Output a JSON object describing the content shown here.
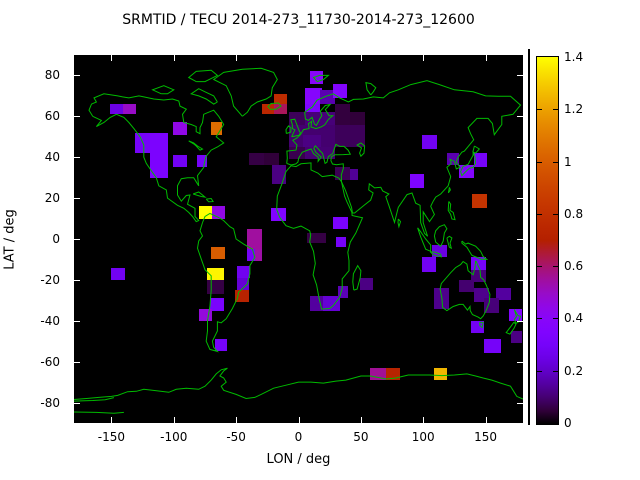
{
  "title": "SRMTID / TECU 2014-273_11730-2014-273_12600",
  "axes": {
    "xlabel": "LON / deg",
    "ylabel": "LAT / deg",
    "x_ticks": [
      "-150",
      "-100",
      "-50",
      "0",
      "50",
      "100",
      "150"
    ],
    "x_tick_values": [
      -150,
      -100,
      -50,
      0,
      50,
      100,
      150
    ],
    "y_ticks": [
      "80",
      "60",
      "40",
      "20",
      "0",
      "-20",
      "-40",
      "-60",
      "-80"
    ],
    "y_tick_values": [
      80,
      60,
      40,
      20,
      0,
      -20,
      -40,
      -60,
      -80
    ]
  },
  "colorbar": {
    "min": 0,
    "max": 1.4,
    "tick_labels": [
      "0",
      "0.2",
      "0.4",
      "0.6",
      "0.8",
      "1",
      "1.2",
      "1.4"
    ],
    "tick_values": [
      0,
      0.2,
      0.4,
      0.6,
      0.8,
      1,
      1.2,
      1.4
    ]
  },
  "colors": {
    "page_background": "#ffffff",
    "plot_background": "#000000",
    "coastline": "#00bb00",
    "text": "#000000",
    "palette_examples": {
      "v0": "#000000",
      "v0.4": "#8806f9",
      "v0.6": "#a7146f",
      "v0.8": "#c13000",
      "v1.0": "#d85d00",
      "v1.4": "#ffff00"
    }
  },
  "chart_data": {
    "type": "heatmap",
    "title": "SRMTID / TECU 2014-273_11730-2014-273_12600",
    "xlabel": "LON / deg",
    "ylabel": "LAT / deg",
    "xlim": [
      -180,
      180
    ],
    "ylim": [
      -90,
      90
    ],
    "grid": false,
    "legend_position": "right-colorbar",
    "value_range": [
      0,
      1.4
    ],
    "palette": "gnuplot rgbformulae: r=sqrt(x), g=x^3, b=sin(2*pi*x), x=value/1.4",
    "background": "black with green world coastlines",
    "cells": [
      {
        "lon": [
          -151,
          -141
        ],
        "lat": [
          61,
          66
        ],
        "v": 0.25
      },
      {
        "lon": [
          -141,
          -130
        ],
        "lat": [
          61,
          66
        ],
        "v": 0.5
      },
      {
        "lon": [
          -101,
          -89
        ],
        "lat": [
          51,
          57
        ],
        "v": 0.45
      },
      {
        "lon": [
          -70,
          -61
        ],
        "lat": [
          51,
          57
        ],
        "v": 1.05
      },
      {
        "lon": [
          -131,
          -119
        ],
        "lat": [
          42,
          52
        ],
        "v": 0.3
      },
      {
        "lon": [
          -119,
          -105
        ],
        "lat": [
          30,
          52
        ],
        "v": 0.33
      },
      {
        "lon": [
          -101,
          -89
        ],
        "lat": [
          35,
          41
        ],
        "v": 0.28
      },
      {
        "lon": [
          -81,
          -73
        ],
        "lat": [
          35,
          41
        ],
        "v": 0.3
      },
      {
        "lon": [
          -80,
          -69
        ],
        "lat": [
          10,
          16
        ],
        "v": 1.4
      },
      {
        "lon": [
          -69,
          -59
        ],
        "lat": [
          10,
          16
        ],
        "v": 0.45
      },
      {
        "lon": [
          -70,
          -59
        ],
        "lat": [
          -10,
          -4
        ],
        "v": 1.0
      },
      {
        "lon": [
          -73,
          -60
        ],
        "lat": [
          -20,
          -14
        ],
        "v": 1.38
      },
      {
        "lon": [
          -73,
          -60
        ],
        "lat": [
          -27,
          -20
        ],
        "v": 0.06
      },
      {
        "lon": [
          -71,
          -60
        ],
        "lat": [
          -35,
          -29
        ],
        "v": 0.32
      },
      {
        "lon": [
          -80,
          -69
        ],
        "lat": [
          -40,
          -34
        ],
        "v": 0.47
      },
      {
        "lon": [
          -67,
          -57
        ],
        "lat": [
          -55,
          -49
        ],
        "v": 0.3
      },
      {
        "lon": [
          -41,
          -29
        ],
        "lat": [
          -1,
          5
        ],
        "v": 0.55
      },
      {
        "lon": [
          -41,
          -29
        ],
        "lat": [
          -6,
          -1
        ],
        "v": 0.55
      },
      {
        "lon": [
          -41,
          -35
        ],
        "lat": [
          -11,
          -5
        ],
        "v": 0.3
      },
      {
        "lon": [
          -35,
          -29
        ],
        "lat": [
          -11,
          -5
        ],
        "v": 0.54
      },
      {
        "lon": [
          -49,
          -39
        ],
        "lat": [
          -19,
          -13
        ],
        "v": 0.27
      },
      {
        "lon": [
          -49,
          -40
        ],
        "lat": [
          -26,
          -19
        ],
        "v": 0.22
      },
      {
        "lon": [
          -51,
          -40
        ],
        "lat": [
          -31,
          -25
        ],
        "v": 0.72
      },
      {
        "lon": [
          -20,
          -9
        ],
        "lat": [
          65,
          71
        ],
        "v": 0.78
      },
      {
        "lon": [
          -29,
          -19
        ],
        "lat": [
          61,
          66
        ],
        "v": 0.75
      },
      {
        "lon": [
          -20,
          -9
        ],
        "lat": [
          61,
          66
        ],
        "v": 0.62
      },
      {
        "lon": [
          5,
          19
        ],
        "lat": [
          66,
          74
        ],
        "v": 0.38
      },
      {
        "lon": [
          5,
          17
        ],
        "lat": [
          61,
          66
        ],
        "v": 0.34
      },
      {
        "lon": [
          17,
          29
        ],
        "lat": [
          66,
          73
        ],
        "v": 0.17
      },
      {
        "lon": [
          28,
          39
        ],
        "lat": [
          69,
          76
        ],
        "v": 0.37
      },
      {
        "lon": [
          9,
          20
        ],
        "lat": [
          76,
          82
        ],
        "v": 0.4
      },
      {
        "lon": [
          -8,
          5
        ],
        "lat": [
          56,
          62
        ],
        "v": 0.08
      },
      {
        "lon": [
          5,
          29
        ],
        "lat": [
          56,
          62
        ],
        "v": 0.11
      },
      {
        "lon": [
          29,
          41
        ],
        "lat": [
          56,
          66
        ],
        "v": 0.055
      },
      {
        "lon": [
          41,
          53
        ],
        "lat": [
          56,
          62
        ],
        "v": 0.05
      },
      {
        "lon": [
          -8,
          29
        ],
        "lat": [
          45,
          56
        ],
        "v": 0.1
      },
      {
        "lon": [
          4,
          18
        ],
        "lat": [
          42,
          51
        ],
        "v": 0.12
      },
      {
        "lon": [
          29,
          53
        ],
        "lat": [
          45,
          56
        ],
        "v": 0.08
      },
      {
        "lon": [
          -8,
          5
        ],
        "lat": [
          39,
          45
        ],
        "v": 0.07
      },
      {
        "lon": [
          5,
          29
        ],
        "lat": [
          39,
          45
        ],
        "v": 0.105
      },
      {
        "lon": [
          -40,
          -28
        ],
        "lat": [
          36,
          42
        ],
        "v": 0.06
      },
      {
        "lon": [
          -28,
          -16
        ],
        "lat": [
          36,
          42
        ],
        "v": 0.05
      },
      {
        "lon": [
          -21,
          -10
        ],
        "lat": [
          27,
          36
        ],
        "v": 0.12
      },
      {
        "lon": [
          29,
          41
        ],
        "lat": [
          29,
          35
        ],
        "v": 0.075
      },
      {
        "lon": [
          41,
          48
        ],
        "lat": [
          29,
          34
        ],
        "v": 0.14
      },
      {
        "lon": [
          -22,
          -10
        ],
        "lat": [
          9,
          15
        ],
        "v": 0.36
      },
      {
        "lon": [
          28,
          40
        ],
        "lat": [
          5,
          11
        ],
        "v": 0.33
      },
      {
        "lon": [
          30,
          38
        ],
        "lat": [
          -4,
          1
        ],
        "v": 0.3
      },
      {
        "lon": [
          7,
          22
        ],
        "lat": [
          -2,
          3
        ],
        "v": 0.06
      },
      {
        "lon": [
          9,
          20
        ],
        "lat": [
          -35,
          -28
        ],
        "v": 0.15
      },
      {
        "lon": [
          20,
          33
        ],
        "lat": [
          -35,
          -28
        ],
        "v": 0.22
      },
      {
        "lon": [
          32,
          40
        ],
        "lat": [
          -29,
          -23
        ],
        "v": 0.18
      },
      {
        "lon": [
          49,
          60
        ],
        "lat": [
          -25,
          -19
        ],
        "v": 0.12
      },
      {
        "lon": [
          99,
          111
        ],
        "lat": [
          44,
          51
        ],
        "v": 0.28
      },
      {
        "lon": [
          119,
          129
        ],
        "lat": [
          36,
          42
        ],
        "v": 0.17
      },
      {
        "lon": [
          141,
          151
        ],
        "lat": [
          35,
          42
        ],
        "v": 0.3
      },
      {
        "lon": [
          129,
          141
        ],
        "lat": [
          30,
          36
        ],
        "v": 0.37
      },
      {
        "lon": [
          89,
          101
        ],
        "lat": [
          25,
          32
        ],
        "v": 0.34
      },
      {
        "lon": [
          139,
          151
        ],
        "lat": [
          15,
          22
        ],
        "v": 0.82
      },
      {
        "lon": [
          99,
          110
        ],
        "lat": [
          -16,
          -9
        ],
        "v": 0.28
      },
      {
        "lon": [
          107,
          119
        ],
        "lat": [
          -9,
          -3
        ],
        "v": 0.24
      },
      {
        "lon": [
          138,
          150
        ],
        "lat": [
          -16,
          -9
        ],
        "v": 0.3
      },
      {
        "lon": [
          138,
          150
        ],
        "lat": [
          -21,
          -15
        ],
        "v": 0.11
      },
      {
        "lon": [
          129,
          141
        ],
        "lat": [
          -26,
          -20
        ],
        "v": 0.1
      },
      {
        "lon": [
          141,
          153
        ],
        "lat": [
          -31,
          -24
        ],
        "v": 0.13
      },
      {
        "lon": [
          158,
          170
        ],
        "lat": [
          -30,
          -24
        ],
        "v": 0.15
      },
      {
        "lon": [
          109,
          121
        ],
        "lat": [
          -34,
          -24
        ],
        "v": 0.13
      },
      {
        "lon": [
          149,
          161
        ],
        "lat": [
          -36,
          -29
        ],
        "v": 0.11
      },
      {
        "lon": [
          169,
          179
        ],
        "lat": [
          -40,
          -34
        ],
        "v": 0.37
      },
      {
        "lon": [
          138,
          149
        ],
        "lat": [
          -46,
          -40
        ],
        "v": 0.28
      },
      {
        "lon": [
          170,
          179
        ],
        "lat": [
          -51,
          -45
        ],
        "v": 0.12
      },
      {
        "lon": [
          149,
          162
        ],
        "lat": [
          -56,
          -49
        ],
        "v": 0.3
      },
      {
        "lon": [
          57,
          70
        ],
        "lat": [
          -69,
          -63
        ],
        "v": 0.56
      },
      {
        "lon": [
          70,
          81
        ],
        "lat": [
          -69,
          -63
        ],
        "v": 0.73
      },
      {
        "lon": [
          109,
          119
        ],
        "lat": [
          -69,
          -63
        ],
        "v": 1.25
      },
      {
        "lon": [
          -150,
          -139
        ],
        "lat": [
          -20,
          -14
        ],
        "v": 0.28
      }
    ]
  }
}
